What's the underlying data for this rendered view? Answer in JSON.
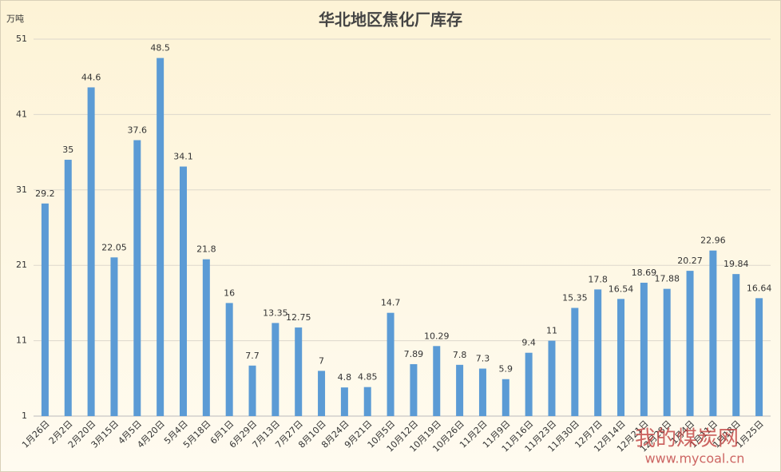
{
  "chart_data": {
    "type": "bar",
    "title": "华北地区焦化厂库存",
    "y_label": "万吨",
    "categories": [
      "1月26日",
      "2月2日",
      "2月20日",
      "3月15日",
      "4月5日",
      "4月20日",
      "5月4日",
      "5月18日",
      "6月1日",
      "6月29日",
      "7月13日",
      "7月27日",
      "8月10日",
      "8月24日",
      "9月21日",
      "10月5日",
      "10月12日",
      "10月19日",
      "10月26日",
      "11月2日",
      "11月9日",
      "11月16日",
      "11月23日",
      "11月30日",
      "12月7日",
      "12月14日",
      "12月21日",
      "12月28日",
      "1月4日",
      "1月11日",
      "1月18日",
      "1月25日"
    ],
    "values": [
      29.2,
      35,
      44.6,
      22.05,
      37.6,
      48.5,
      34.1,
      21.8,
      16,
      7.7,
      13.35,
      12.75,
      7,
      4.8,
      4.85,
      14.7,
      7.89,
      10.29,
      7.8,
      7.3,
      5.9,
      9.4,
      11,
      15.35,
      17.8,
      16.54,
      18.69,
      17.88,
      20.27,
      22.96,
      19.84,
      16.64
    ],
    "color": "#5b9bd5",
    "ylim": [
      1,
      51
    ],
    "yticks": [
      1,
      11,
      21,
      31,
      41,
      51
    ],
    "grid": true,
    "watermark": "我的煤炭网",
    "watermark_url": "www.mycoal.cn"
  }
}
